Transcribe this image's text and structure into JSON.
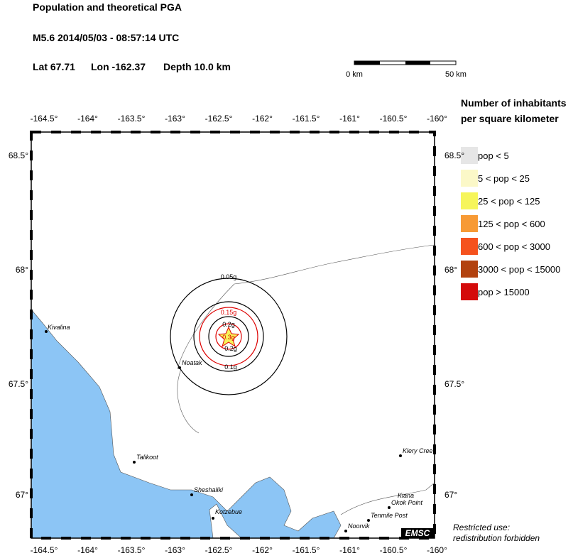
{
  "header": {
    "title": "Population and theoretical PGA",
    "event": "M5.6  2014/05/03 - 08:57:14 UTC",
    "lat": "Lat 67.71",
    "lon": "Lon -162.37",
    "depth": "Depth  10.0 km"
  },
  "scale_bar": {
    "start": "0 km",
    "end": "50 km"
  },
  "legend": {
    "title": [
      "Number of inhabitants",
      "per square kilometer"
    ],
    "items": [
      {
        "label": "pop < 5",
        "color": "#e6e6e6"
      },
      {
        "label": "5 < pop < 25",
        "color": "#fbf8c8"
      },
      {
        "label": "25 < pop < 125",
        "color": "#f6f55a"
      },
      {
        "label": "125 < pop < 600",
        "color": "#f79a35"
      },
      {
        "label": "600 < pop < 3000",
        "color": "#f5521e"
      },
      {
        "label": "3000 < pop < 15000",
        "color": "#b2420f"
      },
      {
        "label": "pop > 15000",
        "color": "#d40b0b"
      }
    ]
  },
  "map": {
    "lon_ticks": [
      "-164.5°",
      "-164°",
      "-163.5°",
      "-163°",
      "-162.5°",
      "-162°",
      "-161.5°",
      "-161°",
      "-160.5°",
      "-160°"
    ],
    "lat_ticks": [
      "68.5°",
      "68°",
      "67.5°",
      "67°"
    ],
    "towns": [
      "Kivalina",
      "Noatak",
      "Talikoot",
      "Sheshaliki",
      "Kotzebue",
      "Klery Cree",
      "Kiana",
      "Okok Point",
      "Tenmile Post",
      "Noorvik"
    ],
    "contours": [
      "0.05g",
      "0.15g",
      "0.2g",
      "0.3g",
      "0.2g",
      "0.1g"
    ],
    "credit": "EMSC"
  },
  "footer": [
    "Restricted use:",
    "redistribution forbidden"
  ]
}
